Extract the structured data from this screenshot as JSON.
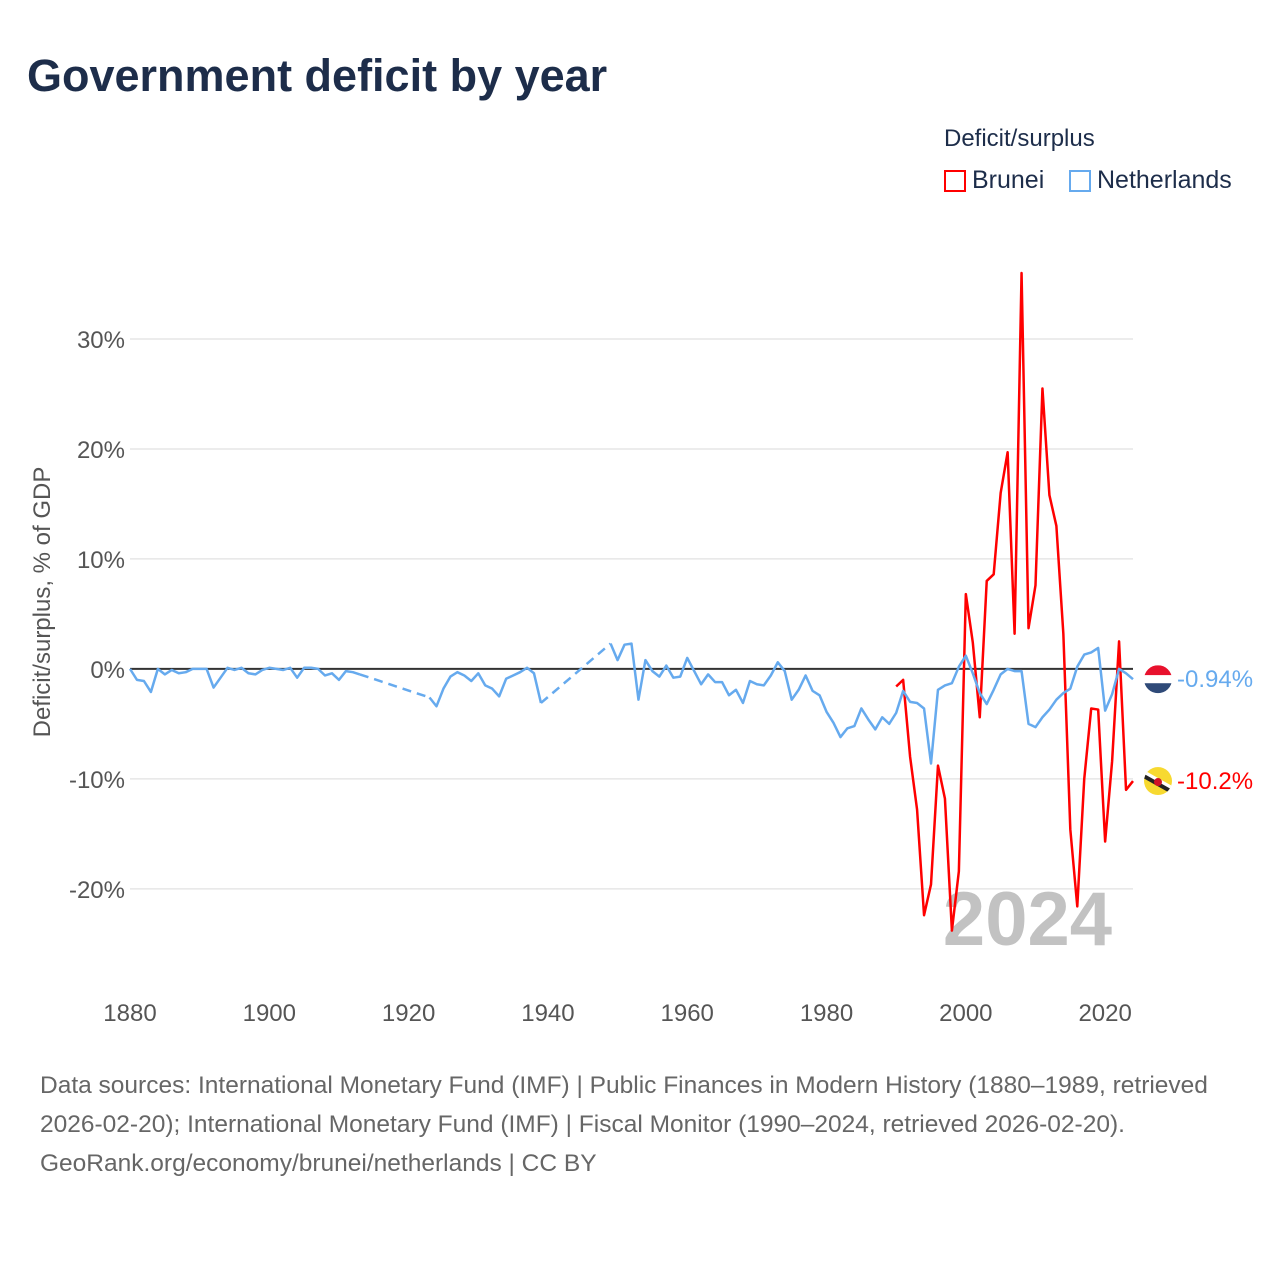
{
  "title": "Government deficit by year",
  "legend": {
    "title": "Deficit/surplus",
    "items": [
      {
        "label": "Brunei",
        "color": "#ff0000"
      },
      {
        "label": "Netherlands",
        "color": "#66aaee"
      }
    ]
  },
  "footer": {
    "sources": "Data sources: International Monetary Fund (IMF) | Public Finances in Modern History (1880–1989, retrieved 2026-02-20); International Monetary Fund (IMF) | Fiscal Monitor (1990–2024, retrieved 2026-02-20).",
    "credit": "GeoRank.org/economy/brunei/netherlands | CC BY"
  },
  "chart_data": {
    "type": "line",
    "title": "Government deficit by year",
    "xlabel": "",
    "ylabel": "Deficit/surplus, % of GDP",
    "xlim": [
      1880,
      2024
    ],
    "ylim": [
      -28.2,
      38
    ],
    "x_ticks": [
      1880,
      1900,
      1920,
      1940,
      1960,
      1980,
      2000,
      2020
    ],
    "x_tick_labels": [
      "1880",
      "1900",
      "1920",
      "1940",
      "1960",
      "1980",
      "2000",
      "2020"
    ],
    "y_ticks": [
      -20,
      -10,
      0,
      10,
      20,
      30
    ],
    "y_tick_labels": [
      "-20%",
      "-10%",
      "0%",
      "10%",
      "20%",
      "30%"
    ],
    "grid": true,
    "legend_position": "top-right",
    "year_label": "2024",
    "series": [
      {
        "name": "Netherlands",
        "color": "#66aaee",
        "start_year": 1880,
        "end_label": "-0.94%",
        "values": [
          0,
          -1.0,
          -1.1,
          -2.1,
          0,
          -0.5,
          -0.1,
          -0.4,
          -0.3,
          0,
          0,
          0,
          -1.7,
          -0.8,
          0.1,
          -0.1,
          0.1,
          -0.4,
          -0.5,
          -0.1,
          0.1,
          0,
          -0.1,
          0.1,
          -0.8,
          0.1,
          0.1,
          0,
          -0.6,
          -0.4,
          -1.0,
          -0.2,
          -0.3,
          -0.5,
          null,
          null,
          null,
          null,
          null,
          null,
          null,
          null,
          null,
          -2.6,
          -3.4,
          -1.8,
          -0.7,
          -0.3,
          -0.6,
          -1.1,
          -0.4,
          -1.5,
          -1.8,
          -2.5,
          -0.9,
          -0.6,
          -0.3,
          0.1,
          -0.4,
          -3.1,
          null,
          null,
          null,
          null,
          null,
          null,
          null,
          null,
          null,
          2.3,
          0.8,
          2.2,
          2.3,
          -2.8,
          0.8,
          -0.2,
          -0.7,
          0.3,
          -0.8,
          -0.7,
          1.0,
          -0.2,
          -1.4,
          -0.5,
          -1.2,
          -1.2,
          -2.4,
          -1.9,
          -3.1,
          -1.1,
          -1.4,
          -1.5,
          -0.6,
          0.6,
          -0.2,
          -2.8,
          -1.9,
          -0.6,
          -2.0,
          -2.4,
          -3.9,
          -4.9,
          -6.2,
          -5.4,
          -5.2,
          -3.6,
          -4.6,
          -5.5,
          -4.4,
          -5.0,
          -4.0,
          -2.0,
          -3.0,
          -3.1,
          -3.6,
          -8.6,
          -1.9,
          -1.5,
          -1.3,
          0.2,
          1.2,
          -0.4,
          -2.2,
          -3.2,
          -1.9,
          -0.5,
          0,
          -0.2,
          -0.2,
          -5.0,
          -5.3,
          -4.4,
          -3.7,
          -2.8,
          -2.2,
          -1.8,
          0.2,
          1.3,
          1.5,
          1.9,
          -3.8,
          -2.3,
          0,
          -0.4,
          -0.94
        ]
      },
      {
        "name": "Brunei",
        "color": "#ff0000",
        "start_year": 1990,
        "end_label": "-10.2%",
        "values": [
          -1.6,
          -1.0,
          -8.0,
          -12.8,
          -22.4,
          -19.6,
          -8.8,
          -11.8,
          -23.8,
          -18.4,
          6.8,
          2.4,
          -4.4,
          8.0,
          8.6,
          16.0,
          19.7,
          3.2,
          36.0,
          3.7,
          7.6,
          25.5,
          15.8,
          13.0,
          3.2,
          -14.6,
          -21.6,
          -10.0,
          -3.6,
          -3.7,
          -15.7,
          -8.4,
          2.5,
          -11.0,
          -10.2
        ]
      }
    ]
  }
}
